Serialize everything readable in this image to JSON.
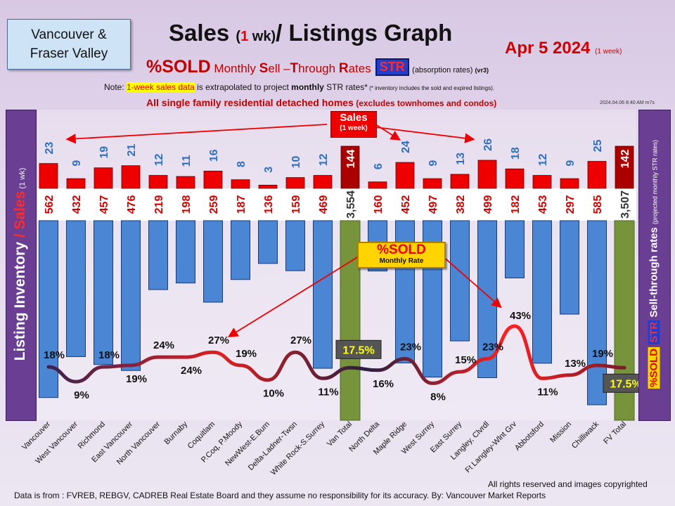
{
  "header": {
    "region_line1": "Vancouver &",
    "region_line2": "Fraser Valley",
    "title_a": "Sales ",
    "title_b": "(",
    "title_c": "1",
    "title_d": " wk)",
    "title_e": "/ Listings Graph",
    "date": "Apr 5  2024",
    "date_note": "(1 week)",
    "sold_big": "%SOLD",
    "sub_monthly": " Monthly ",
    "sub_s": "S",
    "sub_ell": "ell –",
    "sub_t": "T",
    "sub_hrough": "hrough ",
    "sub_r": "R",
    "sub_ates": "ates",
    "str_badge": "STR",
    "absorption": "(absorption rates)",
    "version": "(vr3)",
    "note_prefix": "Note: ",
    "note_highlight": "1-week sales data",
    "note_mid": " is extrapolated to project ",
    "note_bold": "monthly",
    "note_suffix": " STR rates*",
    "note_small": " (* inventory includes the sold and expired listings).",
    "subheading": "All single family residential detached homes",
    "subheading_small": " (excludes townhomes and condos)",
    "stamp": "2024.04.06 8:40 AM m7s"
  },
  "left_axis": {
    "a": "Listing Inventory ",
    "slash": "/ ",
    "sales": "Sales",
    "wk": " (1 wk)"
  },
  "right_axis": {
    "sold": "%SOLD",
    "str": "STR",
    "text": " Sell-through  rates ",
    "note": "(projected monthly STR rates)"
  },
  "callouts": {
    "sales_a": "Sales",
    "sales_b": "(1 week)",
    "sold_a": "%SOLD",
    "sold_b": "Monthly Rate"
  },
  "footer": {
    "left": "Data is from : FVREB, REBGV, CADREB Real Estate Board and they assume no responsibility for its accuracy. By: Vancouver  Market Reports",
    "right": "All rights reserved and  images copyrighted"
  },
  "colors": {
    "inventory_bar": "#4a86d4",
    "total_bar": "#77933c",
    "sales_bar": "#ee0000",
    "total_sales_bar": "#aa0000",
    "sales_label": "#2f6fbf",
    "purple_panel": "#6a3e92"
  },
  "chart_data": {
    "type": "bar",
    "categories": [
      "Vancouver",
      "West Vancouver",
      "Richmond",
      "East Vancouver",
      "North Vancouver",
      "Burnaby",
      "Coquitlam",
      "P.Coq, P.Moody",
      "NewWest-E.Burn",
      "Delta-Ladner-Twsn",
      "White Rock-S.Surrey",
      "Van Total",
      "North Delta",
      "Maple Ridge",
      "West Surrey",
      "East Surrey",
      "Langley, Clvrdl",
      "Ft Langley-Wlnt Grv",
      "Abbotsford",
      "Mission",
      "Chilliwack",
      "FV Total"
    ],
    "series": [
      {
        "name": "Listing Inventory",
        "values": [
          "562",
          "432",
          "457",
          "476",
          "219",
          "198",
          "259",
          "187",
          "136",
          "159",
          "469",
          "3,554",
          "160",
          "452",
          "497",
          "382",
          "499",
          "182",
          "453",
          "297",
          "585",
          "3,507"
        ]
      },
      {
        "name": "Sales",
        "values": [
          23,
          9,
          19,
          21,
          12,
          11,
          16,
          8,
          3,
          10,
          12,
          144,
          6,
          24,
          9,
          13,
          26,
          18,
          12,
          9,
          25,
          142
        ]
      },
      {
        "name": "%SOLD Monthly Rate",
        "values": [
          "18%",
          "9%",
          "18%",
          "19%",
          "24%",
          "24%",
          "27%",
          "19%",
          "10%",
          "27%",
          "11%",
          "17.5%",
          "16%",
          "23%",
          "8%",
          "15%",
          "23%",
          "43%",
          "11%",
          "13%",
          "19%",
          "17.5%"
        ]
      }
    ]
  }
}
